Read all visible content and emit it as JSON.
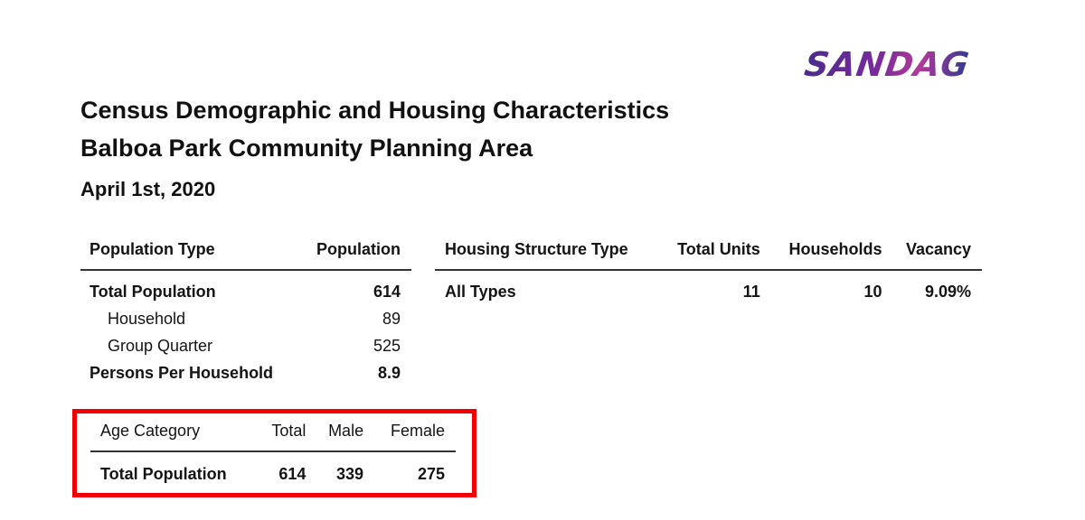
{
  "logo": {
    "text": "SANDAG"
  },
  "header": {
    "title_line1": "Census Demographic and Housing Characteristics",
    "title_line2": "Balboa Park Community Planning Area",
    "date": "April 1st, 2020"
  },
  "population_table": {
    "headers": [
      "Population Type",
      "Population"
    ],
    "rows": [
      {
        "label": "Total Population",
        "value": "614"
      },
      {
        "label": "Household",
        "value": "89"
      },
      {
        "label": "Group Quarter",
        "value": "525"
      },
      {
        "label": "Persons Per Household",
        "value": "8.9"
      }
    ]
  },
  "housing_table": {
    "headers": [
      "Housing Structure Type",
      "Total Units",
      "Households",
      "Vacancy"
    ],
    "rows": [
      {
        "type": "All Types",
        "total_units": "11",
        "households": "10",
        "vacancy": "9.09%"
      }
    ]
  },
  "age_table": {
    "headers": [
      "Age Category",
      "Total",
      "Male",
      "Female"
    ],
    "rows": [
      {
        "category": "Total Population",
        "total": "614",
        "male": "339",
        "female": "275"
      }
    ]
  },
  "colors": {
    "highlight_box": "#f00000",
    "logo_primary": "#5a2a93",
    "text": "#141414"
  }
}
